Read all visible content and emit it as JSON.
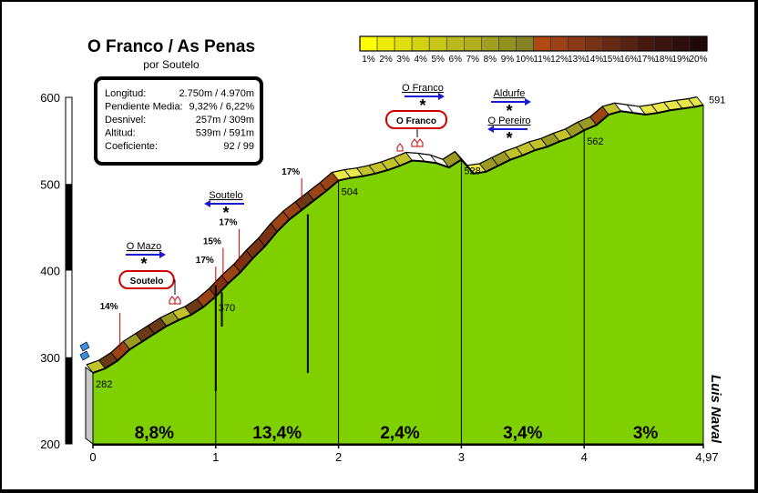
{
  "chart_data": {
    "type": "area",
    "title": "O Franco / As Penas",
    "subtitle": "por Soutelo",
    "xlim": [
      0,
      4.97
    ],
    "ylim": [
      200,
      600
    ],
    "x_ticks": [
      "0",
      "1",
      "2",
      "3",
      "4",
      "4,97"
    ],
    "y_ticks": [
      "200",
      "300",
      "400",
      "500",
      "600"
    ],
    "profile": {
      "x": [
        0,
        0.1,
        0.2,
        0.3,
        0.4,
        0.5,
        0.6,
        0.7,
        0.8,
        0.9,
        1.0,
        1.1,
        1.2,
        1.3,
        1.4,
        1.5,
        1.6,
        1.7,
        1.8,
        1.9,
        2.0,
        2.1,
        2.2,
        2.3,
        2.4,
        2.5,
        2.6,
        2.7,
        2.8,
        2.9,
        3.0,
        3.1,
        3.2,
        3.3,
        3.4,
        3.5,
        3.6,
        3.7,
        3.8,
        3.9,
        4.0,
        4.1,
        4.2,
        4.3,
        4.4,
        4.5,
        4.6,
        4.7,
        4.8,
        4.9,
        4.97
      ],
      "y": [
        282,
        287,
        296,
        309,
        318,
        327,
        336,
        343,
        349,
        358,
        370,
        385,
        398,
        414,
        428,
        445,
        459,
        470,
        481,
        492,
        504,
        507,
        509,
        512,
        516,
        521,
        527,
        526,
        524,
        519,
        528,
        512,
        514,
        521,
        528,
        533,
        539,
        543,
        549,
        554,
        562,
        568,
        580,
        584,
        582,
        580,
        582,
        585,
        587,
        589,
        591
      ]
    },
    "segment_gradients": [
      "8,8%",
      "13,4%",
      "2,4%",
      "3,4%",
      "3%"
    ],
    "elevation_labels": [
      {
        "x": 0.0,
        "value": "282"
      },
      {
        "x": 1.0,
        "value": "370"
      },
      {
        "x": 2.0,
        "value": "504"
      },
      {
        "x": 3.0,
        "value": "528"
      },
      {
        "x": 4.0,
        "value": "562"
      },
      {
        "x": 4.97,
        "value": "591"
      }
    ],
    "ramp_labels": [
      {
        "x": 0.22,
        "label": "14%"
      },
      {
        "x": 1.0,
        "label": "17%"
      },
      {
        "x": 1.06,
        "label": "15%"
      },
      {
        "x": 1.19,
        "label": "17%"
      },
      {
        "x": 1.7,
        "label": "17%"
      }
    ],
    "legend": [
      "1%",
      "2%",
      "3%",
      "4%",
      "5%",
      "6%",
      "7%",
      "8%",
      "9%",
      "10%",
      "11%",
      "12%",
      "13%",
      "14%",
      "15%",
      "16%",
      "17%",
      "18%",
      "19%",
      "20%"
    ],
    "legend_colors": [
      "#ffff00",
      "#ecec08",
      "#dede10",
      "#d2d214",
      "#c6c618",
      "#baba1c",
      "#aeae1e",
      "#a0a020",
      "#929222",
      "#848424",
      "#b04a14",
      "#9c4216",
      "#8a3a16",
      "#783216",
      "#662a14",
      "#562212",
      "#461a10",
      "#38140e",
      "#2c0e0c",
      "#1e0808"
    ],
    "info_box": {
      "rows": [
        {
          "label": "Longitud:",
          "value": "2.750m / 4.970m"
        },
        {
          "label": "Pendiente Media:",
          "value": "9,32% / 6,22%"
        },
        {
          "label": "Desnivel:",
          "value": "257m / 309m"
        },
        {
          "label": "Altitud:",
          "value": "539m / 591m"
        },
        {
          "label": "Coeficiente:",
          "value": "92 / 99"
        }
      ]
    },
    "crossroads": [
      {
        "label": "O Mazo",
        "x": 0.4,
        "arrow": "right"
      },
      {
        "label": "Soutelo",
        "x": 1.0,
        "arrow": "left"
      },
      {
        "label": "O Franco",
        "x": 2.65,
        "arrow": "right"
      },
      {
        "label": "Aldurfe",
        "x": 3.35,
        "arrow": "right"
      },
      {
        "label": "O Pereiro",
        "x": 3.35,
        "arrow": "left"
      }
    ],
    "villages": [
      {
        "label": "Soutelo",
        "x": 0.63
      },
      {
        "label": "O Franco",
        "x": 2.65
      }
    ],
    "author": "Luis Naval",
    "colors": {
      "area": "#80d000",
      "band_light": "#e6e640",
      "band_mid": "#a8a828",
      "band_dark": "#8a3c16",
      "road_flat": "#ffffff"
    }
  }
}
